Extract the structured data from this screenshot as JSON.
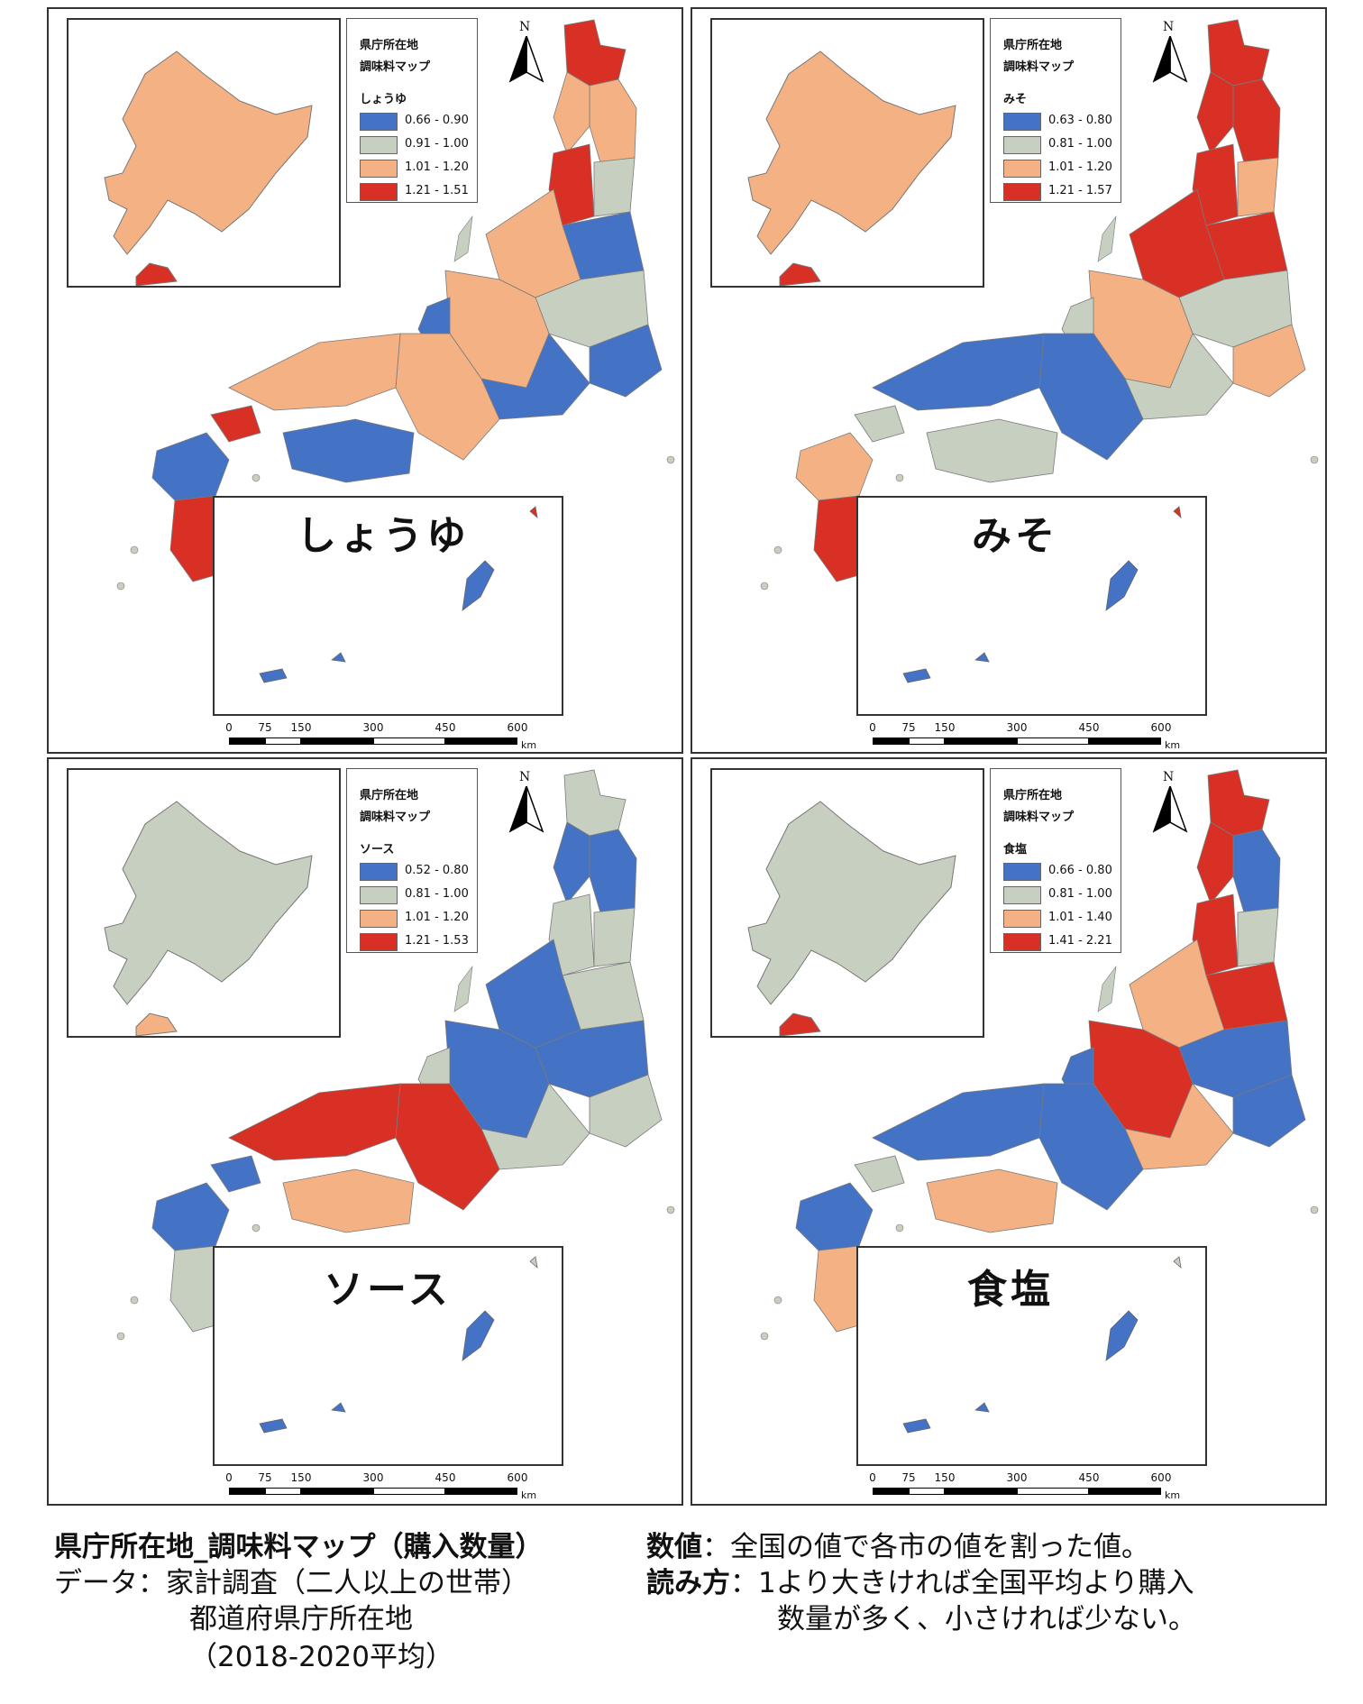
{
  "colors": {
    "blue": "#4472c4",
    "gray": "#c6cfc0",
    "orange": "#f4b183",
    "red": "#d93025"
  },
  "panels": [
    {
      "key": "soy",
      "label": "しょうゆ",
      "legend_title1": "県庁所在地",
      "legend_title2": "調味料マップ",
      "legend_name": "しょうゆ",
      "classes": [
        "0.66 - 0.90",
        "0.91 - 1.00",
        "1.01 - 1.20",
        "1.21 - 1.51"
      ]
    },
    {
      "key": "miso",
      "label": "みそ",
      "legend_title1": "県庁所在地",
      "legend_title2": "調味料マップ",
      "legend_name": "みそ",
      "classes": [
        "0.63 - 0.80",
        "0.81 - 1.00",
        "1.01 - 1.20",
        "1.21 - 1.57"
      ]
    },
    {
      "key": "sauce",
      "label": "ソース",
      "legend_title1": "県庁所在地",
      "legend_title2": "調味料マップ",
      "legend_name": "ソース",
      "classes": [
        "0.52 - 0.80",
        "0.81 - 1.00",
        "1.01 - 1.20",
        "1.21 - 1.53"
      ]
    },
    {
      "key": "salt",
      "label": "食塩",
      "legend_title1": "県庁所在地",
      "legend_title2": "調味料マップ",
      "legend_name": "食塩",
      "classes": [
        "0.66 - 0.80",
        "0.81 - 1.00",
        "1.01 - 1.40",
        "1.41 - 2.21"
      ]
    }
  ],
  "north_label": "N",
  "scale": {
    "ticks": [
      "0",
      "75",
      "150",
      "300",
      "450",
      "600"
    ],
    "unit": "km"
  },
  "caption": {
    "title": "県庁所在地_調味料マップ（購入数量）",
    "data_line": "データ：家計調査（二人以上の世帯）",
    "data_line2": "都道府県庁所在地",
    "data_line3": "（2018-2020平均）",
    "value_key": "数値",
    "value_text": "：全国の値で各市の値を割った値。",
    "read_key": "読み方",
    "read_text": "：1より大きければ全国平均より購入",
    "read_text2": "数量が多く、小さければ少ない。"
  }
}
